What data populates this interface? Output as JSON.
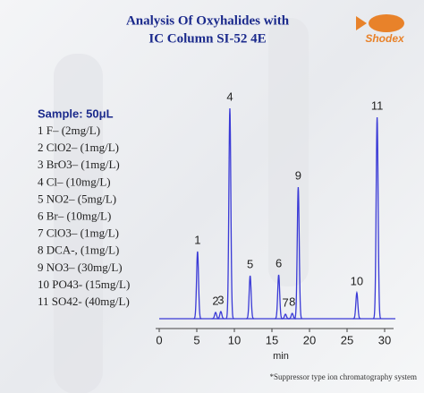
{
  "header": {
    "title": [
      "Analysis Of Oxyhalides with",
      "IC Column  SI-52 4E"
    ],
    "logo": "Shodex"
  },
  "sample": {
    "heading": "Sample: 50μL",
    "items": [
      "1  F–  (2mg/L)",
      "2  ClO2–  (1mg/L)",
      "3  BrO3–  (1mg/L)",
      "4  Cl–  (10mg/L)",
      "5  NO2–  (5mg/L)",
      "6  Br–  (10mg/L)",
      "7  ClO3–  (1mg/L)",
      "8  DCA-,  (1mg/L)",
      "9  NO3–  (30mg/L)",
      "10 PO43-  (15mg/L)",
      "11 SO42-  (40mg/L)"
    ]
  },
  "chart_data": {
    "type": "chromatogram",
    "x_label": "min",
    "xlim": [
      0,
      30
    ],
    "xticks": [
      0,
      5,
      10,
      15,
      20,
      25,
      30
    ],
    "color": "#3a3ad6",
    "peaks": {
      "labels": [
        "1",
        "2",
        "3",
        "4",
        "5",
        "6",
        "7",
        "8",
        "9",
        "10",
        "11"
      ],
      "times": [
        5.1,
        7.5,
        8.2,
        9.4,
        12.1,
        15.9,
        16.8,
        17.7,
        18.5,
        26.3,
        29.0
      ],
      "heights": [
        75,
        7,
        8,
        235,
        48,
        49,
        5,
        6,
        147,
        29,
        225
      ]
    }
  },
  "footnote": "*Suppressor type ion chromatography system"
}
